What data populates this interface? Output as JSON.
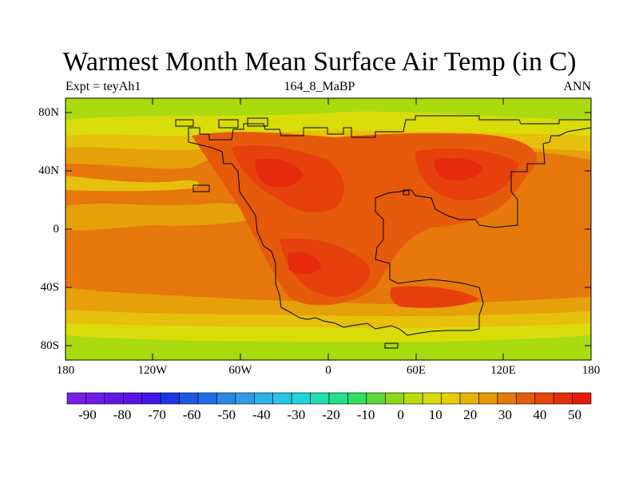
{
  "title": "Warmest Month Mean Surface Air Temp (in C)",
  "subtitle_left": "Expt = teyAh1",
  "subtitle_center": "164_8_MaBP",
  "subtitle_right": "ANN",
  "y_ticks": [
    "80N",
    "40N",
    "0",
    "40S",
    "80S"
  ],
  "x_ticks": [
    "180",
    "120W",
    "60W",
    "0",
    "60E",
    "120E",
    "180"
  ],
  "colorbar": {
    "labels": [
      "-90",
      "-80",
      "-70",
      "-60",
      "-50",
      "-40",
      "-30",
      "-20",
      "-10",
      "0",
      "10",
      "20",
      "30",
      "40",
      "50"
    ],
    "colors": [
      "#7a1ee6",
      "#6f1be6",
      "#6418e6",
      "#5716e6",
      "#3f16e6",
      "#1c36e6",
      "#1e58e6",
      "#1e6fe6",
      "#2b86e6",
      "#2f9ce6",
      "#2bb2e6",
      "#26c4e6",
      "#20d4d8",
      "#1fe0b3",
      "#23e08f",
      "#2fde63",
      "#5fd63a",
      "#8fd619",
      "#b8dc0e",
      "#d8dc08",
      "#e6cc08",
      "#e6b208",
      "#e69808",
      "#e67a08",
      "#e65c08",
      "#e64408",
      "#e62d08",
      "#e61c08"
    ]
  },
  "map_colors": {
    "bg": "#a9db0e",
    "lev10": "#d9dc08",
    "lev20": "#e6c00a",
    "lev25": "#e6a00a",
    "lev30": "#e6780c",
    "lev35": "#e65a0c",
    "lev40": "#e6400c",
    "lev45": "#e62a0c"
  }
}
